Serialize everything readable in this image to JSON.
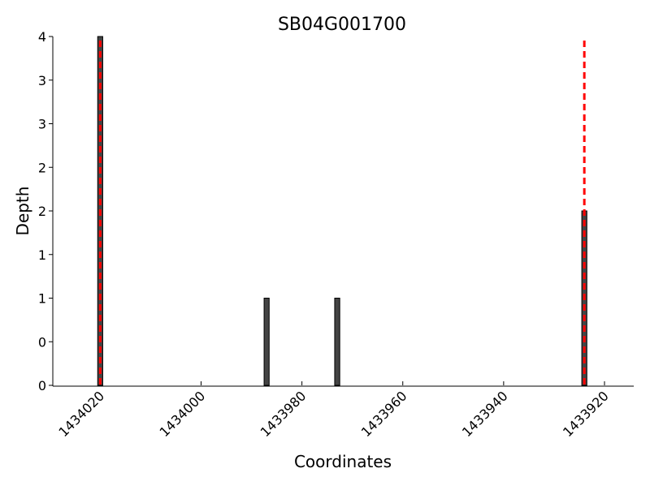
{
  "chart_data": {
    "type": "bar",
    "title": "SB04G001700",
    "x_label": "Coordinates",
    "y_label": "Depth",
    "x": [
      1434020,
      1433987,
      1433973,
      1433924
    ],
    "values": [
      4,
      1,
      1,
      2
    ],
    "bar_width": 1,
    "color": "#444444",
    "edge_color": "#000000",
    "xlim": [
      1434029.4,
      1433914.2
    ],
    "xticks": [
      1434020,
      1434000,
      1433980,
      1433960,
      1433940,
      1433920
    ],
    "ylim": [
      0,
      4
    ],
    "yticks": [
      0,
      {
        "value": 0.5,
        "label": "0"
      },
      1,
      {
        "value": 1.5,
        "label": "1"
      },
      2,
      {
        "value": 2.5,
        "label": "2"
      },
      3,
      {
        "value": 3.5,
        "label": "3"
      },
      4
    ],
    "vlines": [
      1434020,
      1433924
    ],
    "vline_color": "#ff0000",
    "grid": false
  }
}
